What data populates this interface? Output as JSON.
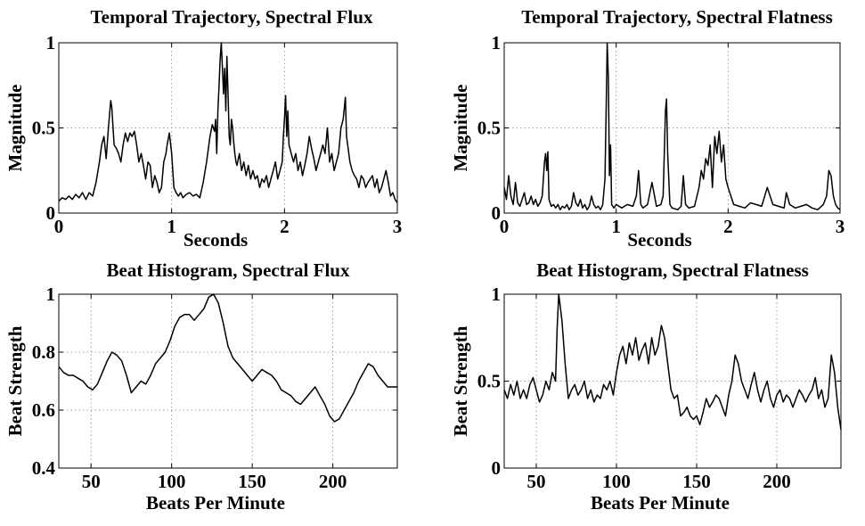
{
  "chart_data": [
    {
      "type": "line",
      "title": "Temporal Trajectory, Spectral Flux",
      "xlabel": "Seconds",
      "ylabel": "Magnitude",
      "xlim": [
        0,
        3
      ],
      "ylim": [
        0,
        1
      ],
      "xticks": [
        0,
        1,
        2,
        3
      ],
      "yticks": [
        0,
        0.5,
        1
      ],
      "xtick_labels": [
        "0",
        "1",
        "2",
        "3"
      ],
      "ytick_labels": [
        "0",
        "0.5",
        "1"
      ],
      "grid": true,
      "series": [
        {
          "x": [
            0.0,
            0.03,
            0.06,
            0.09,
            0.12,
            0.15,
            0.18,
            0.21,
            0.24,
            0.27,
            0.3,
            0.33,
            0.36,
            0.38,
            0.4,
            0.42,
            0.44,
            0.46,
            0.47,
            0.49,
            0.51,
            0.53,
            0.55,
            0.57,
            0.59,
            0.61,
            0.63,
            0.65,
            0.67,
            0.69,
            0.71,
            0.73,
            0.75,
            0.77,
            0.79,
            0.81,
            0.83,
            0.85,
            0.87,
            0.89,
            0.91,
            0.93,
            0.95,
            0.96,
            0.98,
            1.0,
            1.02,
            1.04,
            1.06,
            1.08,
            1.1,
            1.13,
            1.16,
            1.19,
            1.22,
            1.25,
            1.28,
            1.31,
            1.34,
            1.36,
            1.38,
            1.39,
            1.4,
            1.41,
            1.42,
            1.43,
            1.44,
            1.45,
            1.46,
            1.47,
            1.48,
            1.49,
            1.5,
            1.51,
            1.52,
            1.53,
            1.54,
            1.55,
            1.56,
            1.57,
            1.58,
            1.6,
            1.62,
            1.64,
            1.66,
            1.68,
            1.7,
            1.72,
            1.74,
            1.76,
            1.78,
            1.8,
            1.82,
            1.84,
            1.86,
            1.88,
            1.9,
            1.92,
            1.94,
            1.96,
            1.98,
            1.99,
            2.0,
            2.01,
            2.02,
            2.03,
            2.04,
            2.06,
            2.08,
            2.1,
            2.12,
            2.14,
            2.16,
            2.18,
            2.2,
            2.22,
            2.24,
            2.26,
            2.28,
            2.3,
            2.32,
            2.34,
            2.36,
            2.38,
            2.4,
            2.42,
            2.44,
            2.46,
            2.48,
            2.5,
            2.52,
            2.54,
            2.55,
            2.56,
            2.58,
            2.6,
            2.62,
            2.64,
            2.66,
            2.68,
            2.7,
            2.72,
            2.74,
            2.76,
            2.78,
            2.8,
            2.82,
            2.84,
            2.86,
            2.88,
            2.9,
            2.92,
            2.94,
            2.96,
            2.98,
            3.0
          ],
          "y": [
            0.07,
            0.09,
            0.08,
            0.1,
            0.08,
            0.11,
            0.09,
            0.12,
            0.08,
            0.12,
            0.1,
            0.18,
            0.3,
            0.4,
            0.45,
            0.32,
            0.5,
            0.66,
            0.62,
            0.4,
            0.38,
            0.35,
            0.3,
            0.4,
            0.47,
            0.42,
            0.47,
            0.45,
            0.48,
            0.4,
            0.3,
            0.35,
            0.28,
            0.2,
            0.3,
            0.28,
            0.15,
            0.22,
            0.18,
            0.12,
            0.15,
            0.3,
            0.35,
            0.4,
            0.47,
            0.35,
            0.15,
            0.12,
            0.1,
            0.12,
            0.09,
            0.11,
            0.12,
            0.1,
            0.11,
            0.09,
            0.18,
            0.3,
            0.45,
            0.52,
            0.48,
            0.55,
            0.35,
            0.6,
            0.75,
            0.9,
            1.0,
            0.85,
            0.7,
            0.85,
            0.6,
            0.92,
            0.7,
            0.45,
            0.4,
            0.55,
            0.5,
            0.42,
            0.35,
            0.3,
            0.28,
            0.35,
            0.25,
            0.3,
            0.22,
            0.28,
            0.2,
            0.25,
            0.2,
            0.22,
            0.15,
            0.2,
            0.18,
            0.22,
            0.15,
            0.2,
            0.25,
            0.3,
            0.2,
            0.25,
            0.3,
            0.45,
            0.55,
            0.69,
            0.45,
            0.6,
            0.4,
            0.35,
            0.3,
            0.35,
            0.25,
            0.3,
            0.22,
            0.28,
            0.35,
            0.45,
            0.38,
            0.32,
            0.25,
            0.3,
            0.35,
            0.4,
            0.35,
            0.5,
            0.3,
            0.35,
            0.25,
            0.3,
            0.35,
            0.5,
            0.55,
            0.68,
            0.45,
            0.4,
            0.3,
            0.25,
            0.22,
            0.2,
            0.15,
            0.22,
            0.2,
            0.15,
            0.18,
            0.2,
            0.22,
            0.15,
            0.2,
            0.12,
            0.15,
            0.2,
            0.25,
            0.18,
            0.1,
            0.12,
            0.08,
            0.06
          ]
        }
      ]
    },
    {
      "type": "line",
      "title": "Temporal Trajectory, Spectral Flatness",
      "xlabel": "Seconds",
      "ylabel": "Magnitude",
      "xlim": [
        0,
        3
      ],
      "ylim": [
        0,
        1
      ],
      "xticks": [
        0,
        1,
        2,
        3
      ],
      "yticks": [
        0,
        0.5,
        1
      ],
      "xtick_labels": [
        "0",
        "1",
        "2",
        "3"
      ],
      "ytick_labels": [
        "0",
        "0.5",
        "1"
      ],
      "grid": true,
      "series": [
        {
          "x": [
            0.0,
            0.02,
            0.04,
            0.06,
            0.08,
            0.1,
            0.12,
            0.14,
            0.16,
            0.18,
            0.2,
            0.22,
            0.24,
            0.26,
            0.28,
            0.3,
            0.32,
            0.34,
            0.36,
            0.37,
            0.38,
            0.39,
            0.4,
            0.42,
            0.44,
            0.46,
            0.48,
            0.5,
            0.52,
            0.54,
            0.56,
            0.58,
            0.6,
            0.62,
            0.64,
            0.66,
            0.68,
            0.7,
            0.72,
            0.74,
            0.76,
            0.78,
            0.8,
            0.82,
            0.84,
            0.86,
            0.88,
            0.9,
            0.91,
            0.92,
            0.93,
            0.94,
            0.95,
            0.96,
            0.98,
            1.0,
            1.05,
            1.1,
            1.15,
            1.18,
            1.2,
            1.22,
            1.24,
            1.28,
            1.32,
            1.36,
            1.4,
            1.42,
            1.44,
            1.45,
            1.46,
            1.48,
            1.5,
            1.55,
            1.58,
            1.6,
            1.62,
            1.65,
            1.7,
            1.74,
            1.76,
            1.78,
            1.8,
            1.82,
            1.84,
            1.86,
            1.88,
            1.9,
            1.92,
            1.94,
            1.96,
            1.98,
            2.0,
            2.05,
            2.1,
            2.15,
            2.2,
            2.25,
            2.3,
            2.35,
            2.4,
            2.45,
            2.5,
            2.52,
            2.55,
            2.6,
            2.65,
            2.7,
            2.75,
            2.8,
            2.85,
            2.88,
            2.9,
            2.92,
            2.94,
            2.96,
            2.98,
            3.0
          ],
          "y": [
            0.15,
            0.08,
            0.22,
            0.1,
            0.05,
            0.18,
            0.06,
            0.04,
            0.08,
            0.12,
            0.05,
            0.06,
            0.1,
            0.05,
            0.08,
            0.04,
            0.06,
            0.1,
            0.3,
            0.35,
            0.25,
            0.36,
            0.08,
            0.04,
            0.05,
            0.03,
            0.05,
            0.02,
            0.04,
            0.03,
            0.05,
            0.02,
            0.04,
            0.12,
            0.06,
            0.04,
            0.08,
            0.03,
            0.05,
            0.02,
            0.04,
            0.1,
            0.05,
            0.03,
            0.04,
            0.02,
            0.05,
            0.2,
            0.6,
            1.0,
            0.8,
            0.22,
            0.4,
            0.05,
            0.03,
            0.05,
            0.03,
            0.05,
            0.04,
            0.1,
            0.25,
            0.05,
            0.03,
            0.05,
            0.18,
            0.04,
            0.05,
            0.1,
            0.6,
            0.67,
            0.35,
            0.05,
            0.03,
            0.02,
            0.04,
            0.22,
            0.05,
            0.03,
            0.04,
            0.15,
            0.25,
            0.2,
            0.32,
            0.28,
            0.4,
            0.15,
            0.45,
            0.35,
            0.48,
            0.3,
            0.4,
            0.2,
            0.15,
            0.05,
            0.04,
            0.03,
            0.06,
            0.05,
            0.04,
            0.15,
            0.05,
            0.04,
            0.03,
            0.12,
            0.05,
            0.03,
            0.04,
            0.05,
            0.03,
            0.02,
            0.05,
            0.1,
            0.25,
            0.22,
            0.1,
            0.05,
            0.03,
            0.02
          ]
        }
      ]
    },
    {
      "type": "line",
      "title": "Beat Histogram, Spectral Flux",
      "xlabel": "Beats Per Minute",
      "ylabel": "Beat Strength",
      "xlim": [
        30,
        240
      ],
      "ylim": [
        0.4,
        1
      ],
      "xticks": [
        50,
        100,
        150,
        200
      ],
      "yticks": [
        0.4,
        0.6,
        0.8,
        1
      ],
      "xtick_labels": [
        "50",
        "100",
        "150",
        "200"
      ],
      "ytick_labels": [
        "0.4",
        "0.6",
        "0.8",
        "1"
      ],
      "grid": true,
      "series": [
        {
          "x": [
            30,
            33,
            36,
            39,
            42,
            45,
            48,
            51,
            54,
            57,
            60,
            63,
            66,
            69,
            72,
            75,
            78,
            81,
            84,
            87,
            90,
            93,
            96,
            99,
            102,
            105,
            108,
            111,
            114,
            117,
            120,
            123,
            126,
            129,
            132,
            135,
            138,
            141,
            144,
            147,
            150,
            153,
            156,
            159,
            162,
            165,
            168,
            171,
            174,
            177,
            180,
            183,
            186,
            189,
            192,
            195,
            198,
            201,
            204,
            207,
            210,
            213,
            216,
            219,
            222,
            225,
            228,
            231,
            234,
            237,
            240
          ],
          "y": [
            0.75,
            0.73,
            0.72,
            0.72,
            0.71,
            0.7,
            0.68,
            0.67,
            0.69,
            0.73,
            0.77,
            0.8,
            0.79,
            0.77,
            0.72,
            0.66,
            0.68,
            0.7,
            0.69,
            0.72,
            0.76,
            0.78,
            0.8,
            0.84,
            0.89,
            0.92,
            0.93,
            0.93,
            0.91,
            0.93,
            0.95,
            0.99,
            1.0,
            0.97,
            0.9,
            0.82,
            0.78,
            0.76,
            0.74,
            0.72,
            0.7,
            0.72,
            0.74,
            0.73,
            0.72,
            0.7,
            0.67,
            0.66,
            0.65,
            0.63,
            0.62,
            0.64,
            0.66,
            0.68,
            0.65,
            0.62,
            0.58,
            0.56,
            0.57,
            0.6,
            0.63,
            0.66,
            0.7,
            0.73,
            0.76,
            0.75,
            0.72,
            0.7,
            0.68,
            0.68,
            0.68
          ]
        }
      ]
    },
    {
      "type": "line",
      "title": "Beat Histogram, Spectral Flatness",
      "xlabel": "Beats Per Minute",
      "ylabel": "Beat Strength",
      "xlim": [
        30,
        240
      ],
      "ylim": [
        0,
        1
      ],
      "xticks": [
        50,
        100,
        150,
        200
      ],
      "yticks": [
        0,
        0.5,
        1
      ],
      "xtick_labels": [
        "50",
        "100",
        "150",
        "200"
      ],
      "ytick_labels": [
        "0",
        "0.5",
        "1"
      ],
      "grid": true,
      "series": [
        {
          "x": [
            30,
            32,
            34,
            36,
            38,
            40,
            42,
            44,
            46,
            48,
            50,
            52,
            54,
            56,
            58,
            60,
            62,
            63,
            64,
            66,
            68,
            70,
            72,
            74,
            76,
            78,
            80,
            82,
            84,
            86,
            88,
            90,
            92,
            94,
            96,
            98,
            100,
            102,
            104,
            106,
            108,
            110,
            112,
            114,
            116,
            118,
            120,
            122,
            124,
            126,
            128,
            130,
            132,
            134,
            136,
            138,
            140,
            142,
            144,
            146,
            148,
            150,
            152,
            154,
            156,
            158,
            160,
            162,
            164,
            166,
            168,
            170,
            172,
            174,
            176,
            178,
            180,
            182,
            184,
            186,
            188,
            190,
            192,
            194,
            196,
            198,
            200,
            202,
            204,
            206,
            208,
            210,
            212,
            214,
            216,
            218,
            220,
            222,
            224,
            226,
            228,
            230,
            232,
            234,
            236,
            238,
            240
          ],
          "y": [
            0.45,
            0.4,
            0.48,
            0.42,
            0.5,
            0.4,
            0.45,
            0.4,
            0.48,
            0.52,
            0.45,
            0.38,
            0.42,
            0.5,
            0.45,
            0.55,
            0.5,
            0.8,
            1.0,
            0.85,
            0.6,
            0.4,
            0.45,
            0.48,
            0.42,
            0.45,
            0.5,
            0.4,
            0.45,
            0.38,
            0.42,
            0.4,
            0.48,
            0.45,
            0.5,
            0.42,
            0.55,
            0.65,
            0.7,
            0.6,
            0.72,
            0.65,
            0.75,
            0.62,
            0.68,
            0.72,
            0.6,
            0.75,
            0.65,
            0.7,
            0.82,
            0.75,
            0.6,
            0.45,
            0.4,
            0.42,
            0.3,
            0.32,
            0.35,
            0.3,
            0.28,
            0.3,
            0.25,
            0.32,
            0.4,
            0.35,
            0.38,
            0.42,
            0.4,
            0.35,
            0.3,
            0.42,
            0.5,
            0.65,
            0.6,
            0.5,
            0.45,
            0.4,
            0.48,
            0.55,
            0.45,
            0.38,
            0.45,
            0.5,
            0.4,
            0.35,
            0.42,
            0.45,
            0.38,
            0.42,
            0.4,
            0.35,
            0.4,
            0.45,
            0.42,
            0.38,
            0.42,
            0.45,
            0.52,
            0.4,
            0.45,
            0.35,
            0.4,
            0.65,
            0.55,
            0.35,
            0.22
          ]
        }
      ]
    }
  ]
}
